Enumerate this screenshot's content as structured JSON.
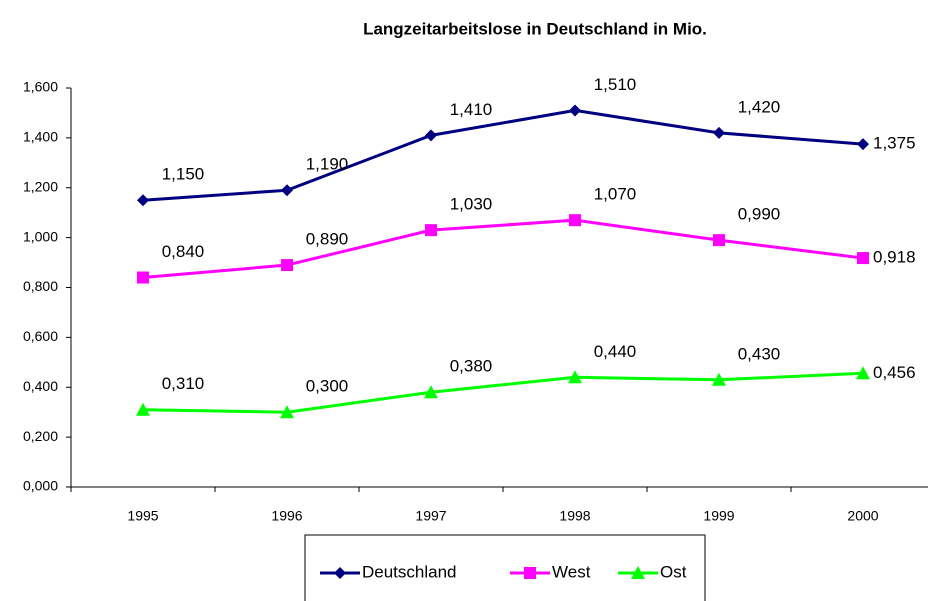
{
  "chart_data": {
    "type": "line",
    "title": "Langzeitarbeitslose in Deutschland in Mio.",
    "categories": [
      "1995",
      "1996",
      "1997",
      "1998",
      "1999",
      "2000"
    ],
    "series": [
      {
        "name": "Deutschland",
        "color": "#000080",
        "marker": "diamond",
        "values": [
          1.15,
          1.19,
          1.41,
          1.51,
          1.42,
          1.375
        ],
        "value_labels": [
          "1,150",
          "1,190",
          "1,410",
          "1,510",
          "1,420",
          "1,375"
        ]
      },
      {
        "name": "West",
        "color": "#ff00ff",
        "marker": "square",
        "values": [
          0.84,
          0.89,
          1.03,
          1.07,
          0.99,
          0.918
        ],
        "value_labels": [
          "0,840",
          "0,890",
          "1,030",
          "1,070",
          "0,990",
          "0,918"
        ]
      },
      {
        "name": "Ost",
        "color": "#00ff00",
        "marker": "triangle",
        "values": [
          0.31,
          0.3,
          0.38,
          0.44,
          0.43,
          0.456
        ],
        "value_labels": [
          "0,310",
          "0,300",
          "0,380",
          "0,440",
          "0,430",
          "0,456"
        ]
      }
    ],
    "ylim": [
      0,
      1.6
    ],
    "yticks": [
      {
        "value": 0,
        "label": "0,000"
      },
      {
        "value": 0.2,
        "label": "0,200"
      },
      {
        "value": 0.4,
        "label": "0,400"
      },
      {
        "value": 0.6,
        "label": "0,600"
      },
      {
        "value": 0.8,
        "label": "0,800"
      },
      {
        "value": 1.0,
        "label": "1,000"
      },
      {
        "value": 1.2,
        "label": "1,200"
      },
      {
        "value": 1.4,
        "label": "1,400"
      },
      {
        "value": 1.6,
        "label": "1,600"
      }
    ],
    "grid": false,
    "legend": "bottom"
  }
}
